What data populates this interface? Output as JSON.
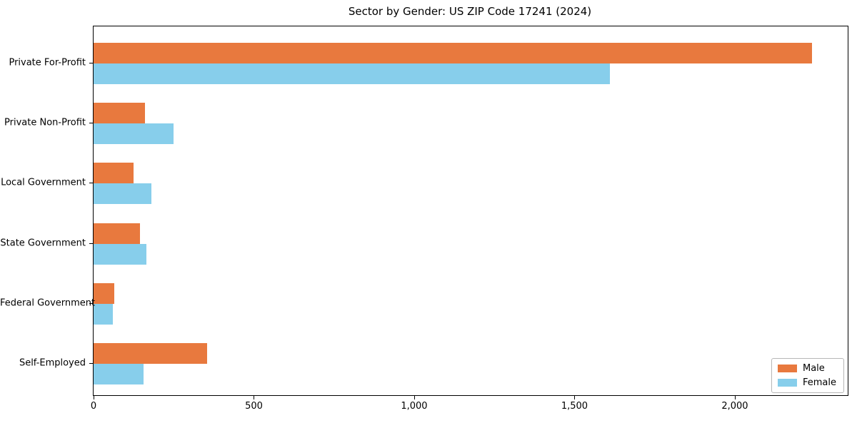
{
  "title": "Sector by Gender: US ZIP Code 17241 (2024)",
  "colors": {
    "male": "#e8793e",
    "female": "#87ceeb",
    "axis": "#000000",
    "background": "#ffffff",
    "legend_border": "#b7b7b7"
  },
  "chart_data": {
    "type": "bar",
    "orientation": "horizontal",
    "title": "Sector by Gender: US ZIP Code 17241 (2024)",
    "categories": [
      "Private For-Profit",
      "Private Non-Profit",
      "Local Government",
      "State Government",
      "Federal Government",
      "Self-Employed"
    ],
    "series": [
      {
        "name": "Male",
        "color": "#e8793e",
        "values": [
          2240,
          160,
          125,
          145,
          65,
          355
        ]
      },
      {
        "name": "Female",
        "color": "#87ceeb",
        "values": [
          1610,
          250,
          180,
          165,
          60,
          155
        ]
      }
    ],
    "xlabel": "",
    "ylabel": "",
    "xlim": [
      0,
      2352
    ],
    "x_ticks": [
      0,
      500,
      1000,
      1500,
      2000
    ],
    "x_tick_labels": [
      "0",
      "500",
      "1,000",
      "1,500",
      "2,000"
    ],
    "grid": false,
    "legend_position": "lower right",
    "legend_labels": [
      "Male",
      "Female"
    ]
  }
}
